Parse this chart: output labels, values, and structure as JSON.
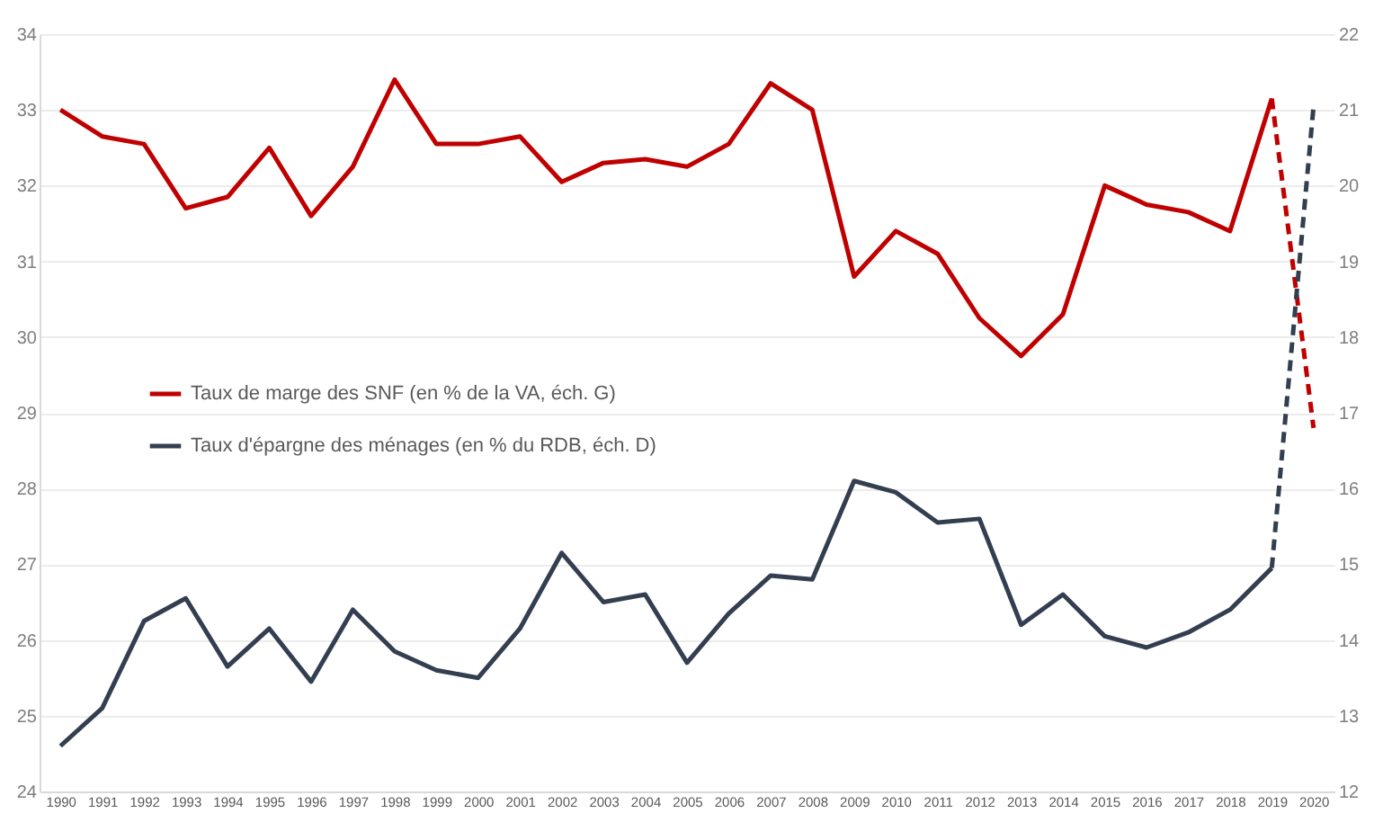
{
  "chart_data": {
    "type": "line",
    "categories": [
      "1990",
      "1991",
      "1992",
      "1993",
      "1994",
      "1995",
      "1996",
      "1997",
      "1998",
      "1999",
      "2000",
      "2001",
      "2002",
      "2003",
      "2004",
      "2005",
      "2006",
      "2007",
      "2008",
      "2009",
      "2010",
      "2011",
      "2012",
      "2013",
      "2014",
      "2015",
      "2016",
      "2017",
      "2018",
      "2019",
      "2020"
    ],
    "series": [
      {
        "name": "Taux de marge des SNF (en % de la VA, éch. G)",
        "color": "#c00000",
        "line_style": "solid",
        "values": [
          33.0,
          32.65,
          32.55,
          31.7,
          31.85,
          32.5,
          31.6,
          32.25,
          33.4,
          32.55,
          32.55,
          32.65,
          32.05,
          32.3,
          32.35,
          32.25,
          32.55,
          33.35,
          33.0,
          30.8,
          31.4,
          31.1,
          30.25,
          29.75,
          30.3,
          32.0,
          31.75,
          31.65,
          31.4,
          33.15,
          null
        ]
      },
      {
        "color": "#c00000",
        "line_style": "dashed",
        "values": [
          null,
          null,
          null,
          null,
          null,
          null,
          null,
          null,
          null,
          null,
          null,
          null,
          null,
          null,
          null,
          null,
          null,
          null,
          null,
          null,
          null,
          null,
          null,
          null,
          null,
          null,
          null,
          null,
          null,
          33.15,
          28.8
        ]
      },
      {
        "name": "Taux d'épargne des ménages (en % du RDB, éch. D)",
        "color": "#333f50",
        "line_style": "solid",
        "axis": "y2",
        "values": [
          12.6,
          13.1,
          14.25,
          14.55,
          13.65,
          14.15,
          13.45,
          14.4,
          13.85,
          13.6,
          13.5,
          14.15,
          15.15,
          14.5,
          14.6,
          13.7,
          14.35,
          14.85,
          14.8,
          16.1,
          15.95,
          15.55,
          15.6,
          14.2,
          14.6,
          14.05,
          13.9,
          14.1,
          14.4,
          14.95,
          null
        ]
      },
      {
        "color": "#333f50",
        "line_style": "dashed",
        "axis": "y2",
        "values": [
          null,
          null,
          null,
          null,
          null,
          null,
          null,
          null,
          null,
          null,
          null,
          null,
          null,
          null,
          null,
          null,
          null,
          null,
          null,
          null,
          null,
          null,
          null,
          null,
          null,
          null,
          null,
          null,
          null,
          14.95,
          21.05
        ]
      }
    ],
    "ylim": [
      24,
      34
    ],
    "yticks": [
      24,
      25,
      26,
      27,
      28,
      29,
      30,
      31,
      32,
      33,
      34
    ],
    "y2lim": [
      12,
      22
    ],
    "y2ticks": [
      12,
      13,
      14,
      15,
      16,
      17,
      18,
      19,
      20,
      21,
      22
    ],
    "grid": "y",
    "legend": "left"
  }
}
